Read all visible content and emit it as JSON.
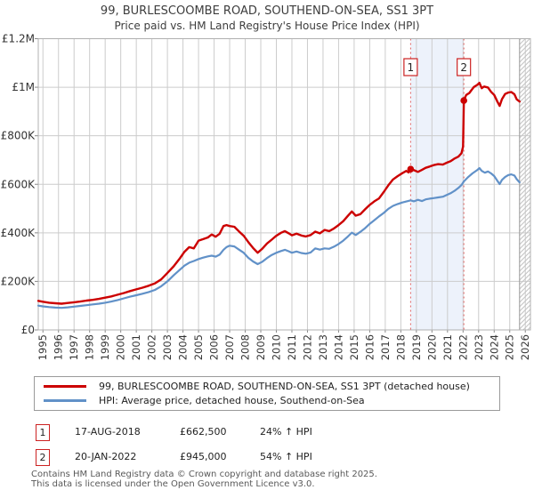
{
  "title": "99, BURLESCOOMBE ROAD, SOUTHEND-ON-SEA, SS1 3PT",
  "subtitle": "Price paid vs. HM Land Registry's House Price Index (HPI)",
  "legend": [
    {
      "label": "99, BURLESCOOMBE ROAD, SOUTHEND-ON-SEA, SS1 3PT (detached house)",
      "color": "#cc0000"
    },
    {
      "label": "HPI: Average price, detached house, Southend-on-Sea",
      "color": "#6191c8"
    }
  ],
  "transactions": [
    {
      "num": "1",
      "date": "17-AUG-2018",
      "price": "£662,500",
      "vs_hpi": "24% ↑ HPI"
    },
    {
      "num": "2",
      "date": "20-JAN-2022",
      "price": "£945,000",
      "vs_hpi": "54% ↑ HPI"
    }
  ],
  "footer_line1": "Contains HM Land Registry data © Crown copyright and database right 2025.",
  "footer_line2": "This data is licensed under the Open Government Licence v3.0.",
  "chart_data": {
    "type": "line",
    "title": "99, BURLESCOOMBE ROAD, SOUTHEND-ON-SEA, SS1 3PT",
    "subtitle": "Price paid vs. HM Land Registry's House Price Index (HPI)",
    "x_domain": [
      1994.7,
      2026.33
    ],
    "y_domain": [
      0,
      1200000
    ],
    "x_ticks": [
      1995,
      1996,
      1997,
      1998,
      1999,
      2000,
      2001,
      2002,
      2003,
      2004,
      2005,
      2006,
      2007,
      2008,
      2009,
      2010,
      2011,
      2012,
      2013,
      2014,
      2015,
      2016,
      2017,
      2018,
      2019,
      2020,
      2021,
      2022,
      2023,
      2024,
      2025,
      2026
    ],
    "y_ticks": [
      {
        "value": 0,
        "label": "£0"
      },
      {
        "value": 200000,
        "label": "£200K"
      },
      {
        "value": 400000,
        "label": "£400K"
      },
      {
        "value": 600000,
        "label": "£600K"
      },
      {
        "value": 800000,
        "label": "£800K"
      },
      {
        "value": 1000000,
        "label": "£1M"
      },
      {
        "value": 1200000,
        "label": "£1.2M"
      }
    ],
    "grid_color": "#cccccc",
    "border_color": "#b0b0b0",
    "tick_color": "#888888",
    "axis_label_color": "#333333",
    "marker_line_color": "#e06060",
    "marker_box_border": "#cc2222",
    "shaded_region": {
      "from": 2018.63,
      "to": 2022.05,
      "color": "#edf2fb"
    },
    "future_hatch": {
      "from": 2025.63,
      "color": "#c4c4c4",
      "edge_color": "#999999"
    },
    "sale_markers": [
      {
        "num": "1",
        "x": 2018.63,
        "price": 662500
      },
      {
        "num": "2",
        "x": 2022.05,
        "price": 945000
      }
    ],
    "series": [
      {
        "name": "price-paid",
        "color": "#cc0000",
        "width": 2.4,
        "points": [
          [
            1994.7,
            120000
          ],
          [
            1995.0,
            116000
          ],
          [
            1995.4,
            112000
          ],
          [
            1995.8,
            110000
          ],
          [
            1996.2,
            108000
          ],
          [
            1996.6,
            111000
          ],
          [
            1997.0,
            114000
          ],
          [
            1997.4,
            117000
          ],
          [
            1997.8,
            121000
          ],
          [
            1998.2,
            124000
          ],
          [
            1998.6,
            128000
          ],
          [
            1999.0,
            133000
          ],
          [
            1999.4,
            138000
          ],
          [
            1999.8,
            145000
          ],
          [
            2000.2,
            152000
          ],
          [
            2000.6,
            160000
          ],
          [
            2001.0,
            167000
          ],
          [
            2001.4,
            174000
          ],
          [
            2001.8,
            182000
          ],
          [
            2002.2,
            192000
          ],
          [
            2002.6,
            208000
          ],
          [
            2003.0,
            235000
          ],
          [
            2003.4,
            262000
          ],
          [
            2003.8,
            295000
          ],
          [
            2004.1,
            322000
          ],
          [
            2004.4,
            341000
          ],
          [
            2004.7,
            336000
          ],
          [
            2005.0,
            368000
          ],
          [
            2005.3,
            374000
          ],
          [
            2005.6,
            381000
          ],
          [
            2005.85,
            393000
          ],
          [
            2006.1,
            384000
          ],
          [
            2006.35,
            396000
          ],
          [
            2006.6,
            428000
          ],
          [
            2006.8,
            432000
          ],
          [
            2007.0,
            428000
          ],
          [
            2007.3,
            425000
          ],
          [
            2007.6,
            406000
          ],
          [
            2007.9,
            388000
          ],
          [
            2008.2,
            362000
          ],
          [
            2008.5,
            338000
          ],
          [
            2008.8,
            318000
          ],
          [
            2009.1,
            335000
          ],
          [
            2009.4,
            356000
          ],
          [
            2009.7,
            372000
          ],
          [
            2010.0,
            388000
          ],
          [
            2010.3,
            400000
          ],
          [
            2010.55,
            407000
          ],
          [
            2010.8,
            398000
          ],
          [
            2011.0,
            390000
          ],
          [
            2011.3,
            397000
          ],
          [
            2011.6,
            389000
          ],
          [
            2011.9,
            385000
          ],
          [
            2012.2,
            391000
          ],
          [
            2012.5,
            405000
          ],
          [
            2012.8,
            398000
          ],
          [
            2013.1,
            412000
          ],
          [
            2013.4,
            407000
          ],
          [
            2013.7,
            418000
          ],
          [
            2014.0,
            432000
          ],
          [
            2014.3,
            448000
          ],
          [
            2014.6,
            470000
          ],
          [
            2014.85,
            488000
          ],
          [
            2015.1,
            471000
          ],
          [
            2015.4,
            477000
          ],
          [
            2015.7,
            497000
          ],
          [
            2016.0,
            515000
          ],
          [
            2016.3,
            530000
          ],
          [
            2016.6,
            542000
          ],
          [
            2016.9,
            568000
          ],
          [
            2017.2,
            596000
          ],
          [
            2017.5,
            620000
          ],
          [
            2017.8,
            634000
          ],
          [
            2018.1,
            646000
          ],
          [
            2018.35,
            655000
          ],
          [
            2018.5,
            649000
          ],
          [
            2018.63,
            662500
          ],
          [
            2018.85,
            658000
          ],
          [
            2019.1,
            651000
          ],
          [
            2019.35,
            659000
          ],
          [
            2019.6,
            668000
          ],
          [
            2019.85,
            673000
          ],
          [
            2020.1,
            679000
          ],
          [
            2020.4,
            683000
          ],
          [
            2020.7,
            681000
          ],
          [
            2020.95,
            689000
          ],
          [
            2021.2,
            695000
          ],
          [
            2021.45,
            706000
          ],
          [
            2021.7,
            714000
          ],
          [
            2021.9,
            728000
          ],
          [
            2022.0,
            755000
          ],
          [
            2022.05,
            945000
          ],
          [
            2022.2,
            968000
          ],
          [
            2022.4,
            976000
          ],
          [
            2022.55,
            989000
          ],
          [
            2022.7,
            1001000
          ],
          [
            2022.9,
            1009000
          ],
          [
            2023.05,
            1018000
          ],
          [
            2023.2,
            996000
          ],
          [
            2023.35,
            1003000
          ],
          [
            2023.6,
            999000
          ],
          [
            2023.8,
            981000
          ],
          [
            2024.0,
            968000
          ],
          [
            2024.2,
            941000
          ],
          [
            2024.35,
            923000
          ],
          [
            2024.5,
            951000
          ],
          [
            2024.7,
            972000
          ],
          [
            2024.9,
            978000
          ],
          [
            2025.1,
            980000
          ],
          [
            2025.3,
            971000
          ],
          [
            2025.45,
            950000
          ],
          [
            2025.63,
            941000
          ]
        ]
      },
      {
        "name": "hpi",
        "color": "#6191c8",
        "width": 2.2,
        "points": [
          [
            1994.7,
            100000
          ],
          [
            1995.0,
            97000
          ],
          [
            1995.4,
            94000
          ],
          [
            1995.8,
            92000
          ],
          [
            1996.2,
            91000
          ],
          [
            1996.6,
            93000
          ],
          [
            1997.0,
            96000
          ],
          [
            1997.4,
            99000
          ],
          [
            1997.8,
            102000
          ],
          [
            1998.2,
            105000
          ],
          [
            1998.6,
            108000
          ],
          [
            1999.0,
            112000
          ],
          [
            1999.4,
            117000
          ],
          [
            1999.8,
            123000
          ],
          [
            2000.2,
            130000
          ],
          [
            2000.6,
            137000
          ],
          [
            2001.0,
            143000
          ],
          [
            2001.4,
            149000
          ],
          [
            2001.8,
            156000
          ],
          [
            2002.2,
            165000
          ],
          [
            2002.6,
            180000
          ],
          [
            2003.0,
            200000
          ],
          [
            2003.4,
            225000
          ],
          [
            2003.8,
            248000
          ],
          [
            2004.1,
            265000
          ],
          [
            2004.4,
            277000
          ],
          [
            2004.7,
            284000
          ],
          [
            2005.0,
            292000
          ],
          [
            2005.3,
            298000
          ],
          [
            2005.6,
            303000
          ],
          [
            2005.85,
            306000
          ],
          [
            2006.1,
            302000
          ],
          [
            2006.35,
            310000
          ],
          [
            2006.6,
            330000
          ],
          [
            2006.8,
            341000
          ],
          [
            2007.0,
            347000
          ],
          [
            2007.3,
            344000
          ],
          [
            2007.6,
            331000
          ],
          [
            2007.9,
            318000
          ],
          [
            2008.2,
            297000
          ],
          [
            2008.5,
            282000
          ],
          [
            2008.8,
            271000
          ],
          [
            2009.1,
            281000
          ],
          [
            2009.4,
            296000
          ],
          [
            2009.7,
            309000
          ],
          [
            2010.0,
            318000
          ],
          [
            2010.3,
            325000
          ],
          [
            2010.55,
            330000
          ],
          [
            2010.8,
            324000
          ],
          [
            2011.0,
            318000
          ],
          [
            2011.3,
            323000
          ],
          [
            2011.6,
            317000
          ],
          [
            2011.9,
            314000
          ],
          [
            2012.2,
            319000
          ],
          [
            2012.5,
            336000
          ],
          [
            2012.8,
            331000
          ],
          [
            2013.1,
            336000
          ],
          [
            2013.4,
            334000
          ],
          [
            2013.7,
            343000
          ],
          [
            2014.0,
            354000
          ],
          [
            2014.3,
            368000
          ],
          [
            2014.6,
            385000
          ],
          [
            2014.85,
            401000
          ],
          [
            2015.1,
            391000
          ],
          [
            2015.4,
            404000
          ],
          [
            2015.7,
            419000
          ],
          [
            2016.0,
            437000
          ],
          [
            2016.3,
            452000
          ],
          [
            2016.6,
            468000
          ],
          [
            2016.9,
            482000
          ],
          [
            2017.2,
            499000
          ],
          [
            2017.5,
            511000
          ],
          [
            2017.8,
            519000
          ],
          [
            2018.1,
            525000
          ],
          [
            2018.35,
            529000
          ],
          [
            2018.63,
            534000
          ],
          [
            2018.85,
            530000
          ],
          [
            2019.1,
            536000
          ],
          [
            2019.35,
            531000
          ],
          [
            2019.6,
            538000
          ],
          [
            2019.85,
            541000
          ],
          [
            2020.1,
            543000
          ],
          [
            2020.4,
            546000
          ],
          [
            2020.7,
            549000
          ],
          [
            2020.95,
            556000
          ],
          [
            2021.2,
            563000
          ],
          [
            2021.45,
            573000
          ],
          [
            2021.7,
            585000
          ],
          [
            2021.9,
            597000
          ],
          [
            2022.05,
            612000
          ],
          [
            2022.3,
            628000
          ],
          [
            2022.6,
            645000
          ],
          [
            2022.9,
            658000
          ],
          [
            2023.05,
            667000
          ],
          [
            2023.2,
            655000
          ],
          [
            2023.4,
            648000
          ],
          [
            2023.6,
            653000
          ],
          [
            2023.8,
            645000
          ],
          [
            2024.0,
            634000
          ],
          [
            2024.2,
            615000
          ],
          [
            2024.35,
            601000
          ],
          [
            2024.5,
            618000
          ],
          [
            2024.7,
            630000
          ],
          [
            2024.9,
            638000
          ],
          [
            2025.1,
            641000
          ],
          [
            2025.3,
            636000
          ],
          [
            2025.45,
            621000
          ],
          [
            2025.63,
            608000
          ]
        ]
      }
    ]
  }
}
